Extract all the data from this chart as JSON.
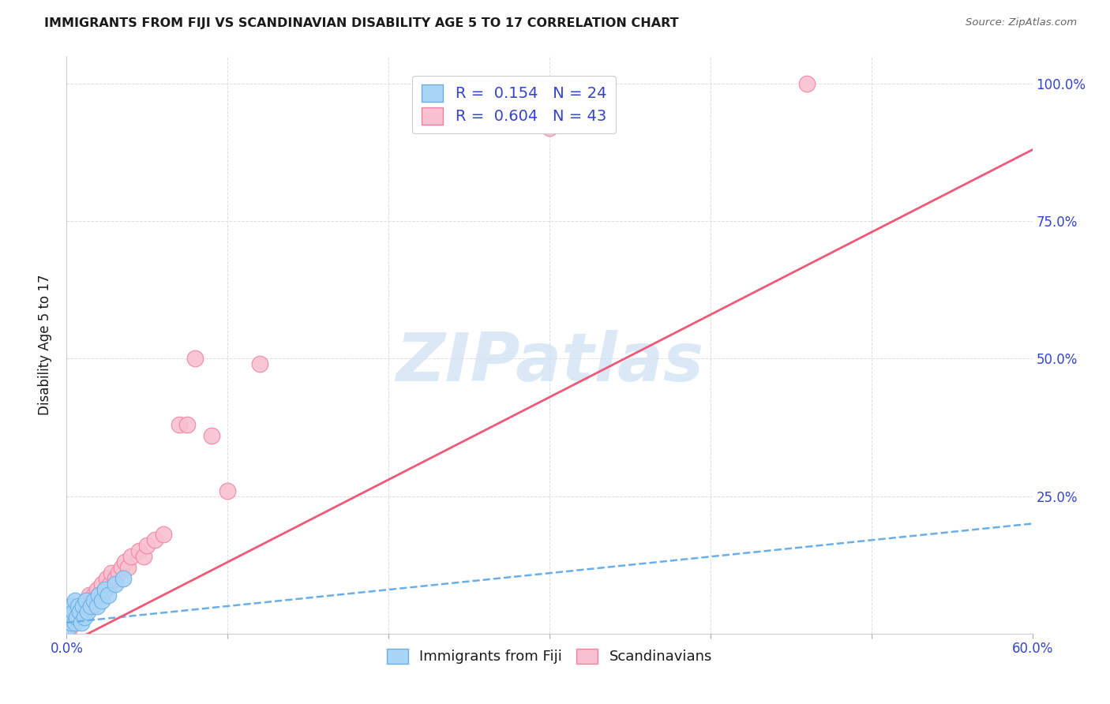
{
  "title": "IMMIGRANTS FROM FIJI VS SCANDINAVIAN DISABILITY AGE 5 TO 17 CORRELATION CHART",
  "source": "Source: ZipAtlas.com",
  "ylabel": "Disability Age 5 to 17",
  "xmin": 0.0,
  "xmax": 0.6,
  "ymin": 0.0,
  "ymax": 1.05,
  "xticks": [
    0.0,
    0.1,
    0.2,
    0.3,
    0.4,
    0.5,
    0.6
  ],
  "xtick_labels": [
    "0.0%",
    "",
    "",
    "",
    "",
    "",
    "60.0%"
  ],
  "yticks": [
    0.0,
    0.25,
    0.5,
    0.75,
    1.0
  ],
  "ytick_labels": [
    "",
    "25.0%",
    "50.0%",
    "75.0%",
    "100.0%"
  ],
  "fiji_color": "#a8d4f5",
  "fiji_edge_color": "#6aaee8",
  "scand_color": "#f9c0cf",
  "scand_edge_color": "#f080a0",
  "fiji_R": 0.154,
  "fiji_N": 24,
  "scand_R": 0.604,
  "scand_N": 43,
  "fiji_x": [
    0.001,
    0.002,
    0.003,
    0.003,
    0.004,
    0.005,
    0.005,
    0.006,
    0.007,
    0.008,
    0.009,
    0.01,
    0.011,
    0.012,
    0.013,
    0.015,
    0.017,
    0.019,
    0.02,
    0.022,
    0.024,
    0.026,
    0.03,
    0.035
  ],
  "fiji_y": [
    0.01,
    0.03,
    0.02,
    0.05,
    0.04,
    0.02,
    0.06,
    0.03,
    0.05,
    0.04,
    0.02,
    0.05,
    0.03,
    0.06,
    0.04,
    0.05,
    0.06,
    0.05,
    0.07,
    0.06,
    0.08,
    0.07,
    0.09,
    0.1
  ],
  "scand_x": [
    0.002,
    0.003,
    0.004,
    0.005,
    0.006,
    0.007,
    0.008,
    0.009,
    0.01,
    0.011,
    0.012,
    0.013,
    0.014,
    0.015,
    0.016,
    0.017,
    0.018,
    0.019,
    0.02,
    0.022,
    0.024,
    0.025,
    0.027,
    0.028,
    0.03,
    0.032,
    0.034,
    0.036,
    0.038,
    0.04,
    0.045,
    0.048,
    0.05,
    0.055,
    0.06,
    0.07,
    0.075,
    0.08,
    0.09,
    0.1,
    0.12,
    0.3,
    0.46
  ],
  "scand_y": [
    0.01,
    0.03,
    0.02,
    0.04,
    0.03,
    0.05,
    0.04,
    0.03,
    0.05,
    0.04,
    0.06,
    0.05,
    0.07,
    0.06,
    0.05,
    0.07,
    0.06,
    0.08,
    0.07,
    0.09,
    0.08,
    0.1,
    0.09,
    0.11,
    0.1,
    0.11,
    0.12,
    0.13,
    0.12,
    0.14,
    0.15,
    0.14,
    0.16,
    0.17,
    0.18,
    0.38,
    0.38,
    0.5,
    0.36,
    0.26,
    0.49,
    0.92,
    1.0
  ],
  "scand_line_x0": 0.0,
  "scand_line_y0": -0.02,
  "scand_line_x1": 0.6,
  "scand_line_y1": 0.88,
  "fiji_line_x0": 0.0,
  "fiji_line_y0": 0.02,
  "fiji_line_x1": 0.6,
  "fiji_line_y1": 0.2,
  "watermark_text": "ZIPatlas",
  "legend_fiji_label": "Immigrants from Fiji",
  "legend_scand_label": "Scandinavians",
  "title_color": "#1a1a1a",
  "source_color": "#666666",
  "axis_label_color": "#3344cc",
  "ylabel_color": "#1a1a1a",
  "grid_color": "#dddddd",
  "watermark_color": "#cce0f5",
  "legend_text_color": "#3344cc",
  "bottom_legend_text_color": "#1a1a1a"
}
